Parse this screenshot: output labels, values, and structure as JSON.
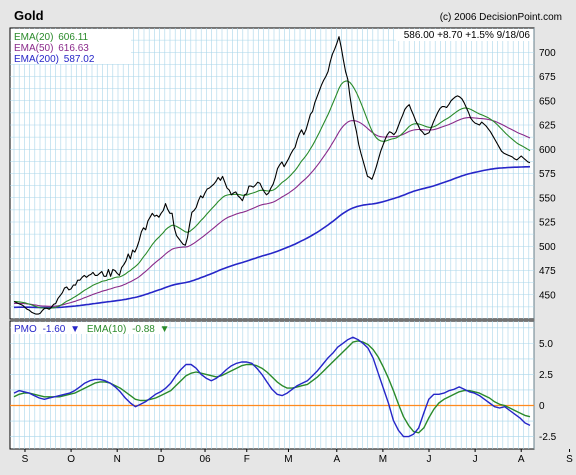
{
  "chart_data": [
    {
      "type": "line",
      "title": "Gold",
      "credit": "(c) 2006 DecisionPoint.com",
      "quote": {
        "last": "586.00",
        "change": "+8.70",
        "pct": "+1.5%",
        "date": "9/18/06"
      },
      "legend": [
        {
          "label": "EMA(20)",
          "value": "606.11",
          "color": "#2a8a2a"
        },
        {
          "label": "EMA(50)",
          "value": "616.63",
          "color": "#8a2a8a"
        },
        {
          "label": "EMA(200)",
          "value": "587.02",
          "color": "#2626c8"
        }
      ],
      "ylim": [
        425,
        725
      ],
      "y_ticks": [
        "450",
        "475",
        "500",
        "525",
        "550",
        "575",
        "600",
        "625",
        "650",
        "675",
        "700"
      ],
      "x_labels": [
        "S",
        "O",
        "N",
        "D",
        "06",
        "F",
        "M",
        "A",
        "M",
        "J",
        "J",
        "A",
        "S"
      ],
      "x_label_index": [
        5,
        26,
        47,
        67,
        87,
        106,
        125,
        147,
        168,
        189,
        210,
        231,
        253
      ],
      "series": [
        {
          "name": "Gold",
          "color": "#000000",
          "values": [
            443,
            442,
            441,
            440,
            439,
            437,
            435,
            434,
            432,
            431,
            430,
            430,
            431,
            434,
            436,
            436,
            435,
            437,
            440,
            441,
            446,
            449,
            452,
            457,
            458,
            455,
            456,
            460,
            460,
            465,
            465,
            468,
            470,
            468,
            470,
            471,
            473,
            470,
            470,
            472,
            474,
            469,
            469,
            476,
            469,
            476,
            475,
            472,
            470,
            478,
            481,
            485,
            492,
            487,
            496,
            494,
            499,
            506,
            515,
            519,
            517,
            526,
            530,
            534,
            531,
            532,
            530,
            534,
            537,
            544,
            538,
            534,
            534,
            519,
            511,
            508,
            505,
            502,
            501,
            509,
            523,
            535,
            537,
            540,
            547,
            552,
            550,
            555,
            559,
            560,
            562,
            564,
            567,
            571,
            568,
            572,
            566,
            560,
            558,
            553,
            555,
            556,
            552,
            550,
            547,
            553,
            554,
            562,
            562,
            561,
            563,
            566,
            565,
            560,
            556,
            553,
            555,
            560,
            564,
            571,
            580,
            584,
            587,
            582,
            586,
            590,
            595,
            599,
            602,
            610,
            616,
            620,
            615,
            620,
            628,
            636,
            639,
            648,
            654,
            660,
            666,
            671,
            675,
            680,
            690,
            698,
            703,
            709,
            716,
            705,
            692,
            680,
            672,
            655,
            640,
            628,
            618,
            605,
            596,
            588,
            580,
            572,
            571,
            569,
            575,
            582,
            590,
            598,
            604,
            610,
            615,
            618,
            617,
            615,
            618,
            624,
            630,
            635,
            641,
            644,
            646,
            640,
            635,
            629,
            625,
            620,
            618,
            615,
            616,
            617,
            622,
            628,
            633,
            638,
            642,
            644,
            644,
            643,
            646,
            650,
            652,
            654,
            655,
            654,
            652,
            648,
            643,
            638,
            632,
            629,
            627,
            626,
            625,
            628,
            626,
            624,
            621,
            618,
            614,
            610,
            606,
            602,
            598,
            596,
            595,
            594,
            593,
            592,
            590,
            589,
            591,
            593,
            591,
            589,
            587,
            586
          ]
        },
        {
          "name": "EMA(20)",
          "color": "#2a8a2a",
          "values": []
        },
        {
          "name": "EMA(50)",
          "color": "#8a2a8a",
          "values": []
        },
        {
          "name": "EMA(200)",
          "color": "#2626c8",
          "values": []
        }
      ]
    },
    {
      "type": "line",
      "legend": [
        {
          "label": "PMO",
          "value": "-1.60",
          "arrow": "down",
          "color": "#2626c8"
        },
        {
          "label": "EMA(10)",
          "value": "-0.88",
          "arrow": "down",
          "color": "#2a8a2a"
        }
      ],
      "ylim": [
        -3.5,
        6.8
      ],
      "y_ticks": [
        "-2.5",
        "0",
        "2.5",
        "5.0"
      ],
      "zero_line_color": "#ff8a1e",
      "series": [
        {
          "name": "PMO",
          "color": "#2626c8",
          "values": [
            1.0,
            1.2,
            1.1,
            1.0,
            0.8,
            0.6,
            0.5,
            0.6,
            0.7,
            0.8,
            0.9,
            1.0,
            1.2,
            1.5,
            1.8,
            2.0,
            2.1,
            2.1,
            2.0,
            1.8,
            1.5,
            1.1,
            0.6,
            0.2,
            -0.1,
            0.1,
            0.3,
            0.6,
            0.9,
            1.1,
            1.4,
            1.8,
            2.4,
            2.9,
            3.3,
            3.3,
            3.0,
            2.5,
            2.2,
            2.0,
            2.2,
            2.5,
            2.9,
            3.2,
            3.4,
            3.5,
            3.5,
            3.4,
            3.0,
            2.5,
            1.9,
            1.3,
            0.9,
            0.8,
            1.0,
            1.3,
            1.6,
            1.8,
            2.0,
            2.4,
            2.8,
            3.3,
            3.8,
            4.2,
            4.7,
            5.0,
            5.3,
            5.5,
            5.3,
            5.0,
            4.6,
            3.8,
            2.6,
            1.4,
            0.2,
            -1.2,
            -2.0,
            -2.5,
            -2.5,
            -2.3,
            -1.8,
            -0.6,
            0.5,
            0.9,
            0.9,
            1.0,
            1.2,
            1.3,
            1.5,
            1.3,
            1.1,
            1.0,
            0.8,
            0.5,
            0.2,
            -0.1,
            -0.2,
            -0.1,
            -0.4,
            -0.7,
            -1.0,
            -1.4,
            -1.6
          ]
        },
        {
          "name": "EMA(10)",
          "color": "#2a8a2a",
          "values": [
            0.7,
            0.9,
            1.0,
            1.0,
            0.9,
            0.8,
            0.7,
            0.7,
            0.7,
            0.7,
            0.8,
            0.9,
            1.0,
            1.2,
            1.4,
            1.6,
            1.8,
            1.9,
            1.9,
            1.8,
            1.6,
            1.4,
            1.1,
            0.8,
            0.5,
            0.4,
            0.4,
            0.5,
            0.6,
            0.8,
            1.0,
            1.2,
            1.6,
            2.0,
            2.4,
            2.6,
            2.7,
            2.6,
            2.5,
            2.4,
            2.3,
            2.4,
            2.6,
            2.8,
            3.0,
            3.2,
            3.3,
            3.3,
            3.2,
            3.0,
            2.7,
            2.3,
            1.9,
            1.6,
            1.4,
            1.4,
            1.5,
            1.6,
            1.7,
            2.0,
            2.3,
            2.7,
            3.1,
            3.5,
            3.9,
            4.3,
            4.7,
            5.1,
            5.2,
            5.1,
            4.9,
            4.5,
            3.9,
            3.1,
            2.2,
            1.2,
            0.1,
            -0.9,
            -1.6,
            -2.1,
            -2.2,
            -1.8,
            -1.0,
            -0.3,
            0.2,
            0.5,
            0.7,
            0.9,
            1.1,
            1.2,
            1.2,
            1.1,
            1.0,
            0.8,
            0.6,
            0.3,
            0.1,
            0.0,
            -0.2,
            -0.4,
            -0.6,
            -0.8,
            -0.9
          ]
        }
      ]
    }
  ]
}
